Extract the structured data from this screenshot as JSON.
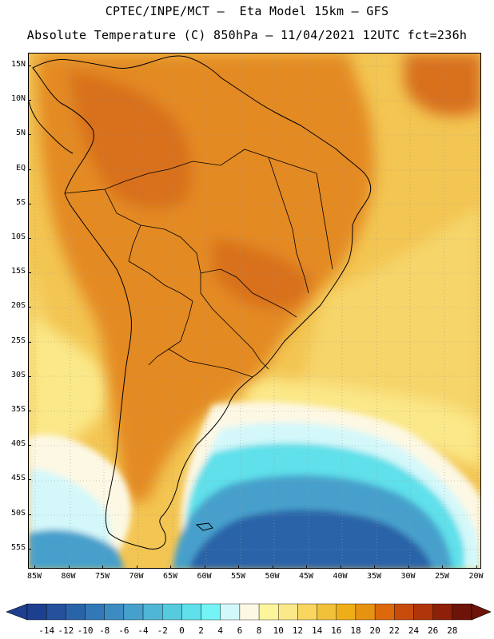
{
  "header": {
    "line1": "CPTEC/INPE/MCT –  Eta Model 15km – GFS",
    "line2": "Absolute Temperature (C) 850hPa – 11/04/2021 12UTC fct=236h"
  },
  "axes": {
    "lat_labels": [
      "15N",
      "10N",
      "5N",
      "EQ",
      "5S",
      "10S",
      "15S",
      "20S",
      "25S",
      "30S",
      "35S",
      "40S",
      "45S",
      "50S",
      "55S"
    ],
    "lon_labels": [
      "85W",
      "80W",
      "75W",
      "70W",
      "65W",
      "60W",
      "55W",
      "50W",
      "45W",
      "40W",
      "35W",
      "30W",
      "25W",
      "20W"
    ]
  },
  "colorbar": {
    "labels": [
      "-14",
      "-12",
      "-10",
      "-8",
      "-6",
      "-4",
      "-2",
      "0",
      "2",
      "4",
      "6",
      "8",
      "10",
      "12",
      "14",
      "16",
      "18",
      "20",
      "22",
      "24",
      "26",
      "28"
    ],
    "colors": [
      "#1d3f8f",
      "#24509c",
      "#2a64a8",
      "#3378b6",
      "#3c8cc2",
      "#46a0cc",
      "#4fb6d6",
      "#56cbe0",
      "#5fe0ea",
      "#74f4f4",
      "#d4f8fa",
      "#fdf8e4",
      "#fdf59c",
      "#fbe888",
      "#f8d660",
      "#f2c13a",
      "#eeae18",
      "#e89212",
      "#dc6a0c",
      "#c74c0c",
      "#b03508",
      "#8c2008",
      "#6d1308"
    ],
    "low_arrow_color": "#1d3f8f",
    "high_arrow_color": "#6d1308"
  },
  "map": {
    "ocean_base_color": "#f3c552",
    "land_base_color": "#eeae18",
    "warm_core_color": "#e48a20",
    "hot_core_color": "#d8701c",
    "cold_deep_color": "#2a64a8",
    "cold_mid_color": "#46a0cc",
    "cool_color": "#5fe0ea",
    "mild_color": "#d4f8fa",
    "pale_color": "#fdf8e4",
    "coast_color": "#000000"
  }
}
